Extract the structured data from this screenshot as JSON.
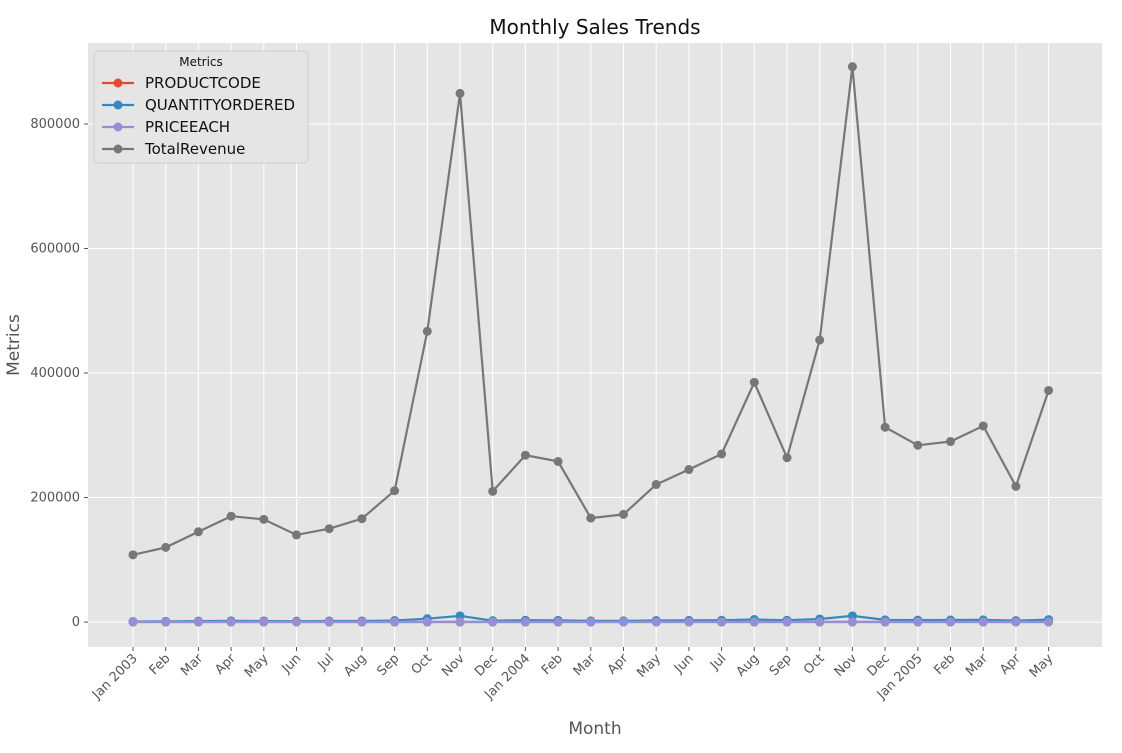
{
  "chart_data": {
    "type": "line",
    "title": "Monthly Sales Trends",
    "xlabel": "Month",
    "ylabel": "Metrics",
    "ylim": [
      -40000,
      930000
    ],
    "y_ticks": [
      0,
      200000,
      400000,
      600000,
      800000
    ],
    "grid": true,
    "legend": {
      "title": "Metrics",
      "placement": "top-left"
    },
    "x": [
      "Jan 2003",
      "Feb",
      "Mar",
      "Apr",
      "May",
      "Jun",
      "Jul",
      "Aug",
      "Sep",
      "Oct",
      "Nov",
      "Dec",
      "Jan 2004",
      "Feb",
      "Mar",
      "Apr",
      "May",
      "Jun",
      "Jul",
      "Aug",
      "Sep",
      "Oct",
      "Nov",
      "Dec",
      "Jan 2005",
      "Feb",
      "Mar",
      "Apr",
      "May"
    ],
    "series": [
      {
        "name": "PRODUCTCODE",
        "color": "#E24A33",
        "values": [
          100,
          100,
          100,
          100,
          100,
          100,
          100,
          100,
          100,
          100,
          100,
          100,
          100,
          100,
          100,
          100,
          100,
          100,
          100,
          100,
          100,
          100,
          100,
          100,
          100,
          100,
          100,
          100,
          100
        ]
      },
      {
        "name": "QUANTITYORDERED",
        "color": "#348ABD",
        "values": [
          1000,
          1200,
          1600,
          1900,
          1800,
          1500,
          1700,
          1800,
          2500,
          5500,
          10000,
          2300,
          3000,
          2800,
          1900,
          1900,
          2500,
          2700,
          3000,
          4200,
          3000,
          5000,
          10000,
          3500,
          3200,
          3300,
          3500,
          2400,
          4000
        ]
      },
      {
        "name": "PRICEEACH",
        "color": "#988ED5",
        "values": [
          300,
          300,
          300,
          300,
          300,
          300,
          300,
          300,
          300,
          300,
          300,
          300,
          300,
          300,
          300,
          300,
          300,
          300,
          300,
          300,
          300,
          300,
          300,
          300,
          300,
          300,
          300,
          300,
          300
        ]
      },
      {
        "name": "TotalRevenue",
        "color": "#777777",
        "values": [
          108000,
          120000,
          145000,
          170000,
          165000,
          140000,
          150000,
          166000,
          211000,
          467000,
          849000,
          210000,
          268000,
          258000,
          167000,
          173000,
          221000,
          245000,
          270000,
          385000,
          264000,
          453000,
          892000,
          313000,
          284000,
          290000,
          315000,
          218000,
          372000
        ]
      }
    ]
  }
}
